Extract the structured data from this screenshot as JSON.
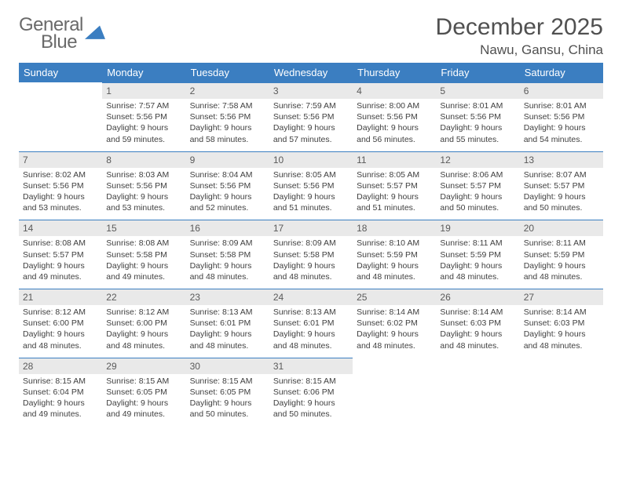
{
  "logo": {
    "line1": "General",
    "line2": "Blue",
    "shape_color": "#3b7ec1",
    "text_gray": "#6a6a6a"
  },
  "header": {
    "month": "December 2025",
    "location": "Nawu, Gansu, China"
  },
  "colors": {
    "header_bg": "#3b7ec1",
    "header_fg": "#ffffff",
    "daynum_bg": "#e9e9e9",
    "text": "#404040"
  },
  "weekdays": [
    "Sunday",
    "Monday",
    "Tuesday",
    "Wednesday",
    "Thursday",
    "Friday",
    "Saturday"
  ],
  "weeks": [
    [
      null,
      {
        "d": "1",
        "sr": "7:57 AM",
        "ss": "5:56 PM",
        "dl": "Daylight: 9 hours and 59 minutes."
      },
      {
        "d": "2",
        "sr": "7:58 AM",
        "ss": "5:56 PM",
        "dl": "Daylight: 9 hours and 58 minutes."
      },
      {
        "d": "3",
        "sr": "7:59 AM",
        "ss": "5:56 PM",
        "dl": "Daylight: 9 hours and 57 minutes."
      },
      {
        "d": "4",
        "sr": "8:00 AM",
        "ss": "5:56 PM",
        "dl": "Daylight: 9 hours and 56 minutes."
      },
      {
        "d": "5",
        "sr": "8:01 AM",
        "ss": "5:56 PM",
        "dl": "Daylight: 9 hours and 55 minutes."
      },
      {
        "d": "6",
        "sr": "8:01 AM",
        "ss": "5:56 PM",
        "dl": "Daylight: 9 hours and 54 minutes."
      }
    ],
    [
      {
        "d": "7",
        "sr": "8:02 AM",
        "ss": "5:56 PM",
        "dl": "Daylight: 9 hours and 53 minutes."
      },
      {
        "d": "8",
        "sr": "8:03 AM",
        "ss": "5:56 PM",
        "dl": "Daylight: 9 hours and 53 minutes."
      },
      {
        "d": "9",
        "sr": "8:04 AM",
        "ss": "5:56 PM",
        "dl": "Daylight: 9 hours and 52 minutes."
      },
      {
        "d": "10",
        "sr": "8:05 AM",
        "ss": "5:56 PM",
        "dl": "Daylight: 9 hours and 51 minutes."
      },
      {
        "d": "11",
        "sr": "8:05 AM",
        "ss": "5:57 PM",
        "dl": "Daylight: 9 hours and 51 minutes."
      },
      {
        "d": "12",
        "sr": "8:06 AM",
        "ss": "5:57 PM",
        "dl": "Daylight: 9 hours and 50 minutes."
      },
      {
        "d": "13",
        "sr": "8:07 AM",
        "ss": "5:57 PM",
        "dl": "Daylight: 9 hours and 50 minutes."
      }
    ],
    [
      {
        "d": "14",
        "sr": "8:08 AM",
        "ss": "5:57 PM",
        "dl": "Daylight: 9 hours and 49 minutes."
      },
      {
        "d": "15",
        "sr": "8:08 AM",
        "ss": "5:58 PM",
        "dl": "Daylight: 9 hours and 49 minutes."
      },
      {
        "d": "16",
        "sr": "8:09 AM",
        "ss": "5:58 PM",
        "dl": "Daylight: 9 hours and 48 minutes."
      },
      {
        "d": "17",
        "sr": "8:09 AM",
        "ss": "5:58 PM",
        "dl": "Daylight: 9 hours and 48 minutes."
      },
      {
        "d": "18",
        "sr": "8:10 AM",
        "ss": "5:59 PM",
        "dl": "Daylight: 9 hours and 48 minutes."
      },
      {
        "d": "19",
        "sr": "8:11 AM",
        "ss": "5:59 PM",
        "dl": "Daylight: 9 hours and 48 minutes."
      },
      {
        "d": "20",
        "sr": "8:11 AM",
        "ss": "5:59 PM",
        "dl": "Daylight: 9 hours and 48 minutes."
      }
    ],
    [
      {
        "d": "21",
        "sr": "8:12 AM",
        "ss": "6:00 PM",
        "dl": "Daylight: 9 hours and 48 minutes."
      },
      {
        "d": "22",
        "sr": "8:12 AM",
        "ss": "6:00 PM",
        "dl": "Daylight: 9 hours and 48 minutes."
      },
      {
        "d": "23",
        "sr": "8:13 AM",
        "ss": "6:01 PM",
        "dl": "Daylight: 9 hours and 48 minutes."
      },
      {
        "d": "24",
        "sr": "8:13 AM",
        "ss": "6:01 PM",
        "dl": "Daylight: 9 hours and 48 minutes."
      },
      {
        "d": "25",
        "sr": "8:14 AM",
        "ss": "6:02 PM",
        "dl": "Daylight: 9 hours and 48 minutes."
      },
      {
        "d": "26",
        "sr": "8:14 AM",
        "ss": "6:03 PM",
        "dl": "Daylight: 9 hours and 48 minutes."
      },
      {
        "d": "27",
        "sr": "8:14 AM",
        "ss": "6:03 PM",
        "dl": "Daylight: 9 hours and 48 minutes."
      }
    ],
    [
      {
        "d": "28",
        "sr": "8:15 AM",
        "ss": "6:04 PM",
        "dl": "Daylight: 9 hours and 49 minutes."
      },
      {
        "d": "29",
        "sr": "8:15 AM",
        "ss": "6:05 PM",
        "dl": "Daylight: 9 hours and 49 minutes."
      },
      {
        "d": "30",
        "sr": "8:15 AM",
        "ss": "6:05 PM",
        "dl": "Daylight: 9 hours and 50 minutes."
      },
      {
        "d": "31",
        "sr": "8:15 AM",
        "ss": "6:06 PM",
        "dl": "Daylight: 9 hours and 50 minutes."
      },
      null,
      null,
      null
    ]
  ],
  "labels": {
    "sunrise_prefix": "Sunrise: ",
    "sunset_prefix": "Sunset: "
  }
}
